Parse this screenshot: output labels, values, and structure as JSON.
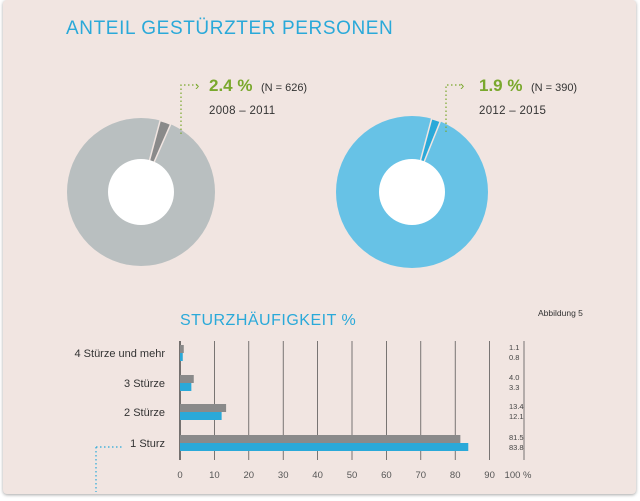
{
  "colors": {
    "gray": "#8a8a8a",
    "gray_light": "#b9bfc0",
    "blue": "#2aa9d9",
    "blue_light": "#67c2e6",
    "green": "#7aa82d"
  },
  "header": {
    "title": "ANTEIL GESTÜRZTER PERSONEN"
  },
  "donuts": [
    {
      "pct_label": "2.4 %",
      "n_label": "(N = 626)",
      "period": "2008 – 2011",
      "value": 2.4
    },
    {
      "pct_label": "1.9 %",
      "n_label": "(N = 390)",
      "period": "2012 – 2015",
      "value": 1.9
    }
  ],
  "chart_data": {
    "type": "bar",
    "orientation": "horizontal",
    "title": "STURZHÄUFIGKEIT %",
    "figure_label": "Abbildung 5",
    "categories": [
      "4 Stürze und mehr",
      "3 Stürze",
      "2 Stürze",
      "1 Sturz"
    ],
    "series": [
      {
        "name": "2008 – 2011",
        "color": "#8a8a8a",
        "values": [
          1.1,
          4.0,
          13.4,
          81.5
        ],
        "labels": [
          "1.1",
          "4.0",
          "13.4",
          "81.5"
        ]
      },
      {
        "name": "2012 – 2015",
        "color": "#2aa9d9",
        "values": [
          0.8,
          3.3,
          12.1,
          83.8
        ],
        "labels": [
          "0.8",
          "3.3",
          "12.1",
          "83.8"
        ]
      }
    ],
    "xlim": [
      0,
      100
    ],
    "xticks": [
      "0",
      "10",
      "20",
      "30",
      "40",
      "50",
      "60",
      "70",
      "80",
      "90",
      "100 %"
    ],
    "grid": true
  }
}
